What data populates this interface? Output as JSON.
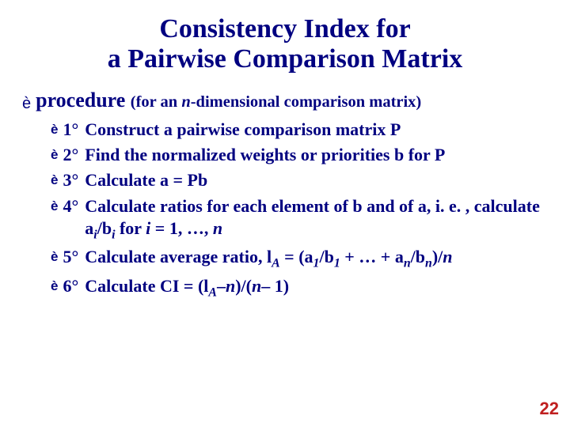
{
  "colors": {
    "text": "#000080",
    "background": "#ffffff",
    "page_num": "#c02020"
  },
  "title_line1": "Consistency Index for",
  "title_line2": "a Pairwise Comparison Matrix",
  "procedure": {
    "arrow": "è",
    "word": "procedure",
    "paren_prefix": " (for an ",
    "n": "n",
    "paren_suffix": "-dimensional comparison matrix)"
  },
  "steps": [
    {
      "num": "1°",
      "html": "Construct a pairwise comparison matrix P"
    },
    {
      "num": "2°",
      "html": "Find the normalized weights or priorities  <span class='sym'>b</span> for P"
    },
    {
      "num": "3°",
      "html": "Calculate <span class='sym'>a</span> = P<span class='sym'>b</span>"
    },
    {
      "num": "4°",
      "html": "Calculate ratios for each element of  <span class='sym'>b</span> and of <span class='sym'>a</span>, i. e. , calculate <span class='sym'>a</span><span class='sub'>i</span>/<span class='sym'>b</span><span class='sub'>i</span> for <span class='ital'>i</span> = 1, …, <span class='ital'>n</span>"
    },
    {
      "num": "5°",
      "html": "Calculate average ratio, <span class='sym'>l</span><span class='sub'>A</span> = (<span class='sym'>a</span><span class='sub'>1</span>/<span class='sym'>b</span><span class='sub'>1</span> + … + <span class='sym'>a</span><span class='sub'>n</span>/<span class='sym'>b</span><span class='sub'>n</span>)/<span class='ital'>n</span>"
    },
    {
      "num": "6°",
      "html": "Calculate CI = (<span class='sym'>l</span><span class='sub'>A</span>–<span class='ital'>n</span>)/(<span class='ital'>n</span>– 1)"
    }
  ],
  "arrow_glyph": "è",
  "page_number": "22"
}
